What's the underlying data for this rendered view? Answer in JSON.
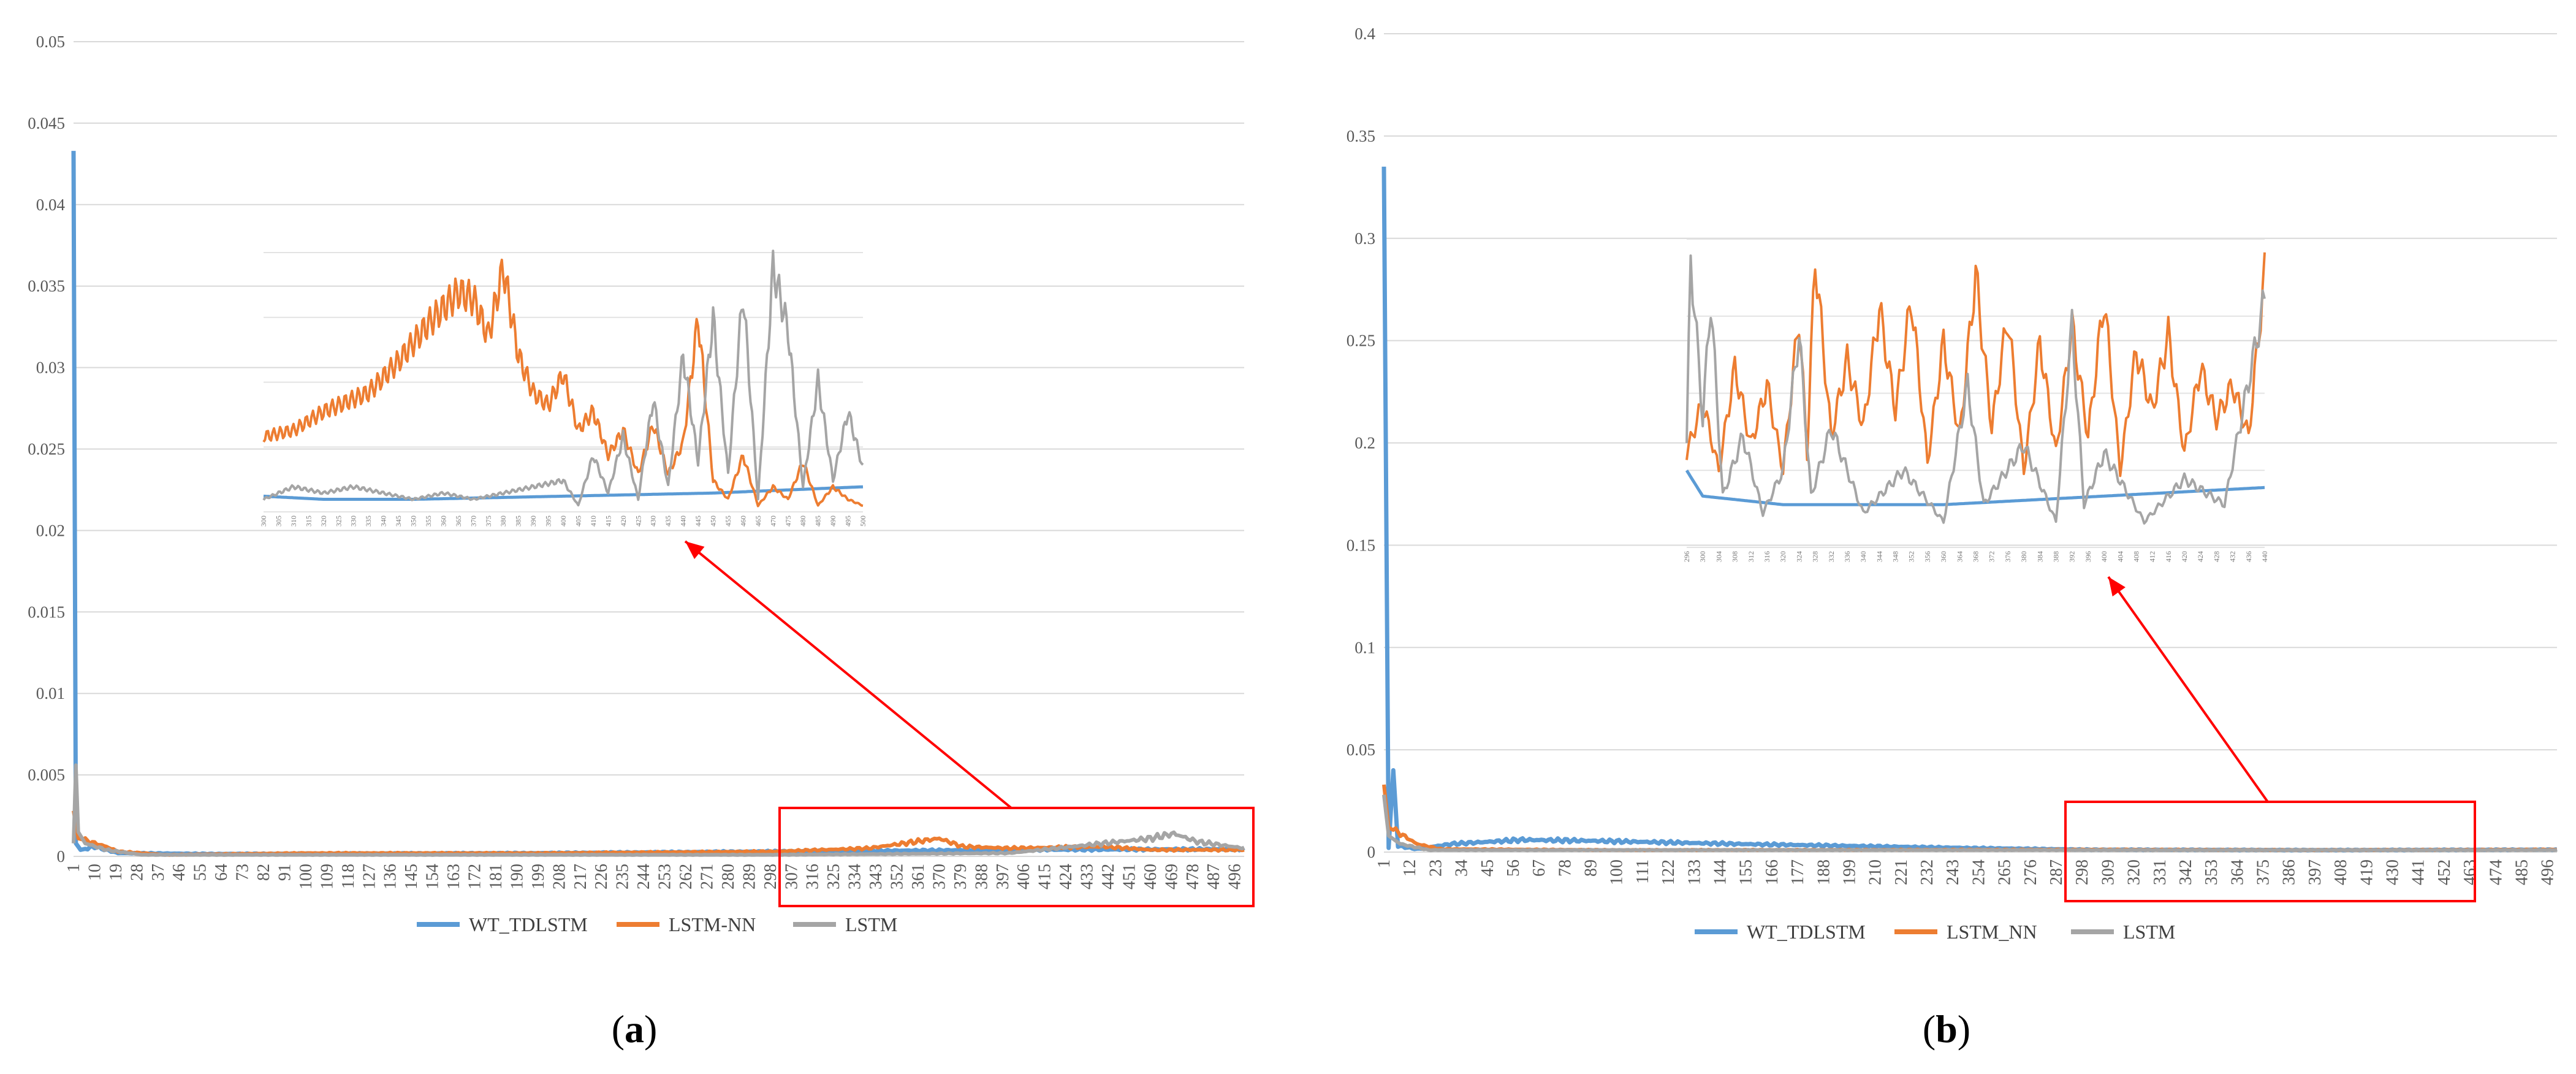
{
  "chart_data": [
    {
      "panel_label": "(a)",
      "type": "line",
      "x_start": 1,
      "x_end": 500,
      "xtick_step": 9,
      "ylim": [
        0,
        0.05
      ],
      "yticks": [
        "0",
        "0.005",
        "0.01",
        "0.015",
        "0.02",
        "0.025",
        "0.03",
        "0.035",
        "0.04",
        "0.045",
        "0.05"
      ],
      "grid": true,
      "legend_position": "bottom",
      "series": [
        {
          "name": "WT_TDLSTM",
          "color": "#5B9BD5",
          "points": [
            [
              1,
              0.0433
            ],
            [
              2,
              0.0008
            ],
            [
              4,
              0.0004
            ],
            [
              10,
              0.0006
            ],
            [
              20,
              0.0002
            ],
            [
              60,
              0.00015
            ],
            [
              200,
              0.0002
            ],
            [
              300,
              0.0003
            ],
            [
              400,
              0.0004
            ],
            [
              500,
              0.00045
            ]
          ]
        },
        {
          "name": "LSTM-NN",
          "color": "#ED7D31",
          "points": [
            [
              1,
              0.0028
            ],
            [
              3,
              0.0011
            ],
            [
              8,
              0.0009
            ],
            [
              15,
              0.0006
            ],
            [
              20,
              0.0003
            ],
            [
              40,
              0.0001
            ],
            [
              100,
              0.0002
            ],
            [
              200,
              0.0002
            ],
            [
              300,
              0.0003
            ],
            [
              340,
              0.0005
            ],
            [
              360,
              0.0009
            ],
            [
              370,
              0.0011
            ],
            [
              380,
              0.0006
            ],
            [
              400,
              0.0005
            ],
            [
              440,
              0.0006
            ],
            [
              460,
              0.0004
            ],
            [
              500,
              0.0004
            ]
          ]
        },
        {
          "name": "LSTM",
          "color": "#A5A5A5",
          "points": [
            [
              1,
              0.0008
            ],
            [
              2,
              0.0056
            ],
            [
              3,
              0.0015
            ],
            [
              6,
              0.0008
            ],
            [
              15,
              0.0004
            ],
            [
              30,
              0.0001
            ],
            [
              300,
              0.0001
            ],
            [
              400,
              0.0002
            ],
            [
              420,
              0.0005
            ],
            [
              440,
              0.0008
            ],
            [
              460,
              0.0011
            ],
            [
              470,
              0.0014
            ],
            [
              480,
              0.0009
            ],
            [
              500,
              0.0005
            ]
          ]
        }
      ],
      "inset": {
        "xtick_start": 300,
        "xtick_end": 500,
        "xtick_step": 5,
        "series": [
          {
            "name": "WT_TDLSTM",
            "color": "#5B9BD5",
            "points": [
              [
                300,
                0.00025
              ],
              [
                320,
                0.0002
              ],
              [
                350,
                0.0002
              ],
              [
                400,
                0.00025
              ],
              [
                450,
                0.0003
              ],
              [
                500,
                0.0004
              ]
            ]
          },
          {
            "name": "LSTM-NN",
            "color": "#ED7D31",
            "points": [
              [
                300,
                0.0012
              ],
              [
                310,
                0.0013
              ],
              [
                320,
                0.0016
              ],
              [
                335,
                0.0019
              ],
              [
                345,
                0.0024
              ],
              [
                355,
                0.003
              ],
              [
                365,
                0.0035
              ],
              [
                370,
                0.0034
              ],
              [
                375,
                0.0028
              ],
              [
                380,
                0.0039
              ],
              [
                385,
                0.0025
              ],
              [
                390,
                0.0019
              ],
              [
                395,
                0.0017
              ],
              [
                400,
                0.0022
              ],
              [
                405,
                0.0013
              ],
              [
                410,
                0.0016
              ],
              [
                415,
                0.0009
              ],
              [
                420,
                0.0013
              ],
              [
                425,
                0.0006
              ],
              [
                430,
                0.0014
              ],
              [
                435,
                0.0006
              ],
              [
                440,
                0.0011
              ],
              [
                445,
                0.0031
              ],
              [
                450,
                0.0005
              ],
              [
                455,
                0.0002
              ],
              [
                460,
                0.0009
              ],
              [
                465,
                0.0001
              ],
              [
                470,
                0.0004
              ],
              [
                475,
                0.0002
              ],
              [
                480,
                0.0008
              ],
              [
                485,
                0.0001
              ],
              [
                490,
                0.0004
              ],
              [
                495,
                0.0002
              ],
              [
                500,
                0.0001
              ]
            ]
          },
          {
            "name": "LSTM",
            "color": "#A5A5A5",
            "points": [
              [
                300,
                0.0002
              ],
              [
                310,
                0.0004
              ],
              [
                320,
                0.0003
              ],
              [
                330,
                0.0004
              ],
              [
                340,
                0.0003
              ],
              [
                350,
                0.0002
              ],
              [
                360,
                0.0003
              ],
              [
                370,
                0.0002
              ],
              [
                380,
                0.0003
              ],
              [
                390,
                0.0004
              ],
              [
                400,
                0.0005
              ],
              [
                405,
                0.0001
              ],
              [
                410,
                0.0009
              ],
              [
                415,
                0.0003
              ],
              [
                420,
                0.0012
              ],
              [
                425,
                0.0002
              ],
              [
                430,
                0.0018
              ],
              [
                435,
                0.0004
              ],
              [
                440,
                0.0025
              ],
              [
                445,
                0.0008
              ],
              [
                450,
                0.0031
              ],
              [
                455,
                0.0006
              ],
              [
                460,
                0.0035
              ],
              [
                465,
                0.0002
              ],
              [
                470,
                0.0039
              ],
              [
                475,
                0.0029
              ],
              [
                480,
                0.0004
              ],
              [
                485,
                0.0021
              ],
              [
                490,
                0.0005
              ],
              [
                495,
                0.0016
              ],
              [
                500,
                0.0007
              ]
            ]
          }
        ]
      }
    },
    {
      "panel_label": "(b)",
      "type": "line",
      "x_start": 1,
      "x_end": 500,
      "xtick_step": 11,
      "ylim": [
        0,
        0.4
      ],
      "yticks": [
        "0",
        "0.05",
        "0.1",
        "0.15",
        "0.2",
        "0.25",
        "0.3",
        "0.35",
        "0.4"
      ],
      "grid": true,
      "legend_position": "bottom",
      "series": [
        {
          "name": "WT_TDLSTM",
          "color": "#5B9BD5",
          "points": [
            [
              1,
              0.335
            ],
            [
              3,
              0.002
            ],
            [
              5,
              0.04
            ],
            [
              7,
              0.003
            ],
            [
              15,
              0.0015
            ],
            [
              30,
              0.004
            ],
            [
              60,
              0.006
            ],
            [
              90,
              0.0055
            ],
            [
              150,
              0.004
            ],
            [
              250,
              0.002
            ],
            [
              300,
              0.0012
            ],
            [
              400,
              0.001
            ],
            [
              500,
              0.0012
            ]
          ]
        },
        {
          "name": "LSTM_NN",
          "color": "#ED7D31",
          "points": [
            [
              1,
              0.033
            ],
            [
              3,
              0.012
            ],
            [
              8,
              0.009
            ],
            [
              15,
              0.004
            ],
            [
              25,
              0.0015
            ],
            [
              100,
              0.001
            ],
            [
              300,
              0.0012
            ],
            [
              400,
              0.001
            ],
            [
              500,
              0.0012
            ]
          ]
        },
        {
          "name": "LSTM",
          "color": "#A5A5A5",
          "points": [
            [
              1,
              0.028
            ],
            [
              3,
              0.008
            ],
            [
              8,
              0.004
            ],
            [
              20,
              0.001
            ],
            [
              100,
              0.001
            ],
            [
              500,
              0.001
            ]
          ]
        }
      ],
      "inset": {
        "xtick_start": 296,
        "xtick_end": 440,
        "xtick_step": 4,
        "series": [
          {
            "name": "WT_TDLSTM",
            "color": "#5B9BD5",
            "points": [
              [
                296,
                0.0009
              ],
              [
                300,
                0.0006
              ],
              [
                320,
                0.0005
              ],
              [
                360,
                0.0005
              ],
              [
                400,
                0.0006
              ],
              [
                440,
                0.0007
              ]
            ]
          },
          {
            "name": "LSTM_NN",
            "color": "#ED7D31",
            "points": [
              [
                296,
                0.0011
              ],
              [
                300,
                0.0017
              ],
              [
                304,
                0.0009
              ],
              [
                308,
                0.0021
              ],
              [
                312,
                0.0012
              ],
              [
                316,
                0.0019
              ],
              [
                320,
                0.0009
              ],
              [
                324,
                0.0027
              ],
              [
                326,
                0.0011
              ],
              [
                328,
                0.0034
              ],
              [
                332,
                0.0013
              ],
              [
                336,
                0.0022
              ],
              [
                340,
                0.0014
              ],
              [
                344,
                0.0028
              ],
              [
                348,
                0.0016
              ],
              [
                352,
                0.0029
              ],
              [
                356,
                0.001
              ],
              [
                360,
                0.0024
              ],
              [
                364,
                0.0013
              ],
              [
                368,
                0.0032
              ],
              [
                372,
                0.0014
              ],
              [
                376,
                0.0027
              ],
              [
                380,
                0.0009
              ],
              [
                384,
                0.0024
              ],
              [
                388,
                0.0011
              ],
              [
                392,
                0.0026
              ],
              [
                396,
                0.0013
              ],
              [
                400,
                0.0029
              ],
              [
                404,
                0.0009
              ],
              [
                408,
                0.0023
              ],
              [
                412,
                0.0016
              ],
              [
                416,
                0.0025
              ],
              [
                420,
                0.0011
              ],
              [
                424,
                0.0021
              ],
              [
                428,
                0.0015
              ],
              [
                432,
                0.0019
              ],
              [
                436,
                0.0013
              ],
              [
                440,
                0.0032
              ]
            ]
          },
          {
            "name": "LSTM",
            "color": "#A5A5A5",
            "points": [
              [
                296,
                0.0012
              ],
              [
                297,
                0.0034
              ],
              [
                300,
                0.0015
              ],
              [
                302,
                0.0029
              ],
              [
                305,
                0.0006
              ],
              [
                310,
                0.0013
              ],
              [
                315,
                0.0004
              ],
              [
                320,
                0.0009
              ],
              [
                324,
                0.0025
              ],
              [
                327,
                0.0006
              ],
              [
                332,
                0.0014
              ],
              [
                340,
                0.0004
              ],
              [
                350,
                0.0009
              ],
              [
                360,
                0.0003
              ],
              [
                366,
                0.0019
              ],
              [
                370,
                0.0005
              ],
              [
                380,
                0.0012
              ],
              [
                388,
                0.0003
              ],
              [
                392,
                0.0026
              ],
              [
                395,
                0.0005
              ],
              [
                400,
                0.0011
              ],
              [
                410,
                0.0003
              ],
              [
                420,
                0.0008
              ],
              [
                430,
                0.0005
              ],
              [
                440,
                0.0029
              ]
            ]
          }
        ]
      }
    }
  ]
}
